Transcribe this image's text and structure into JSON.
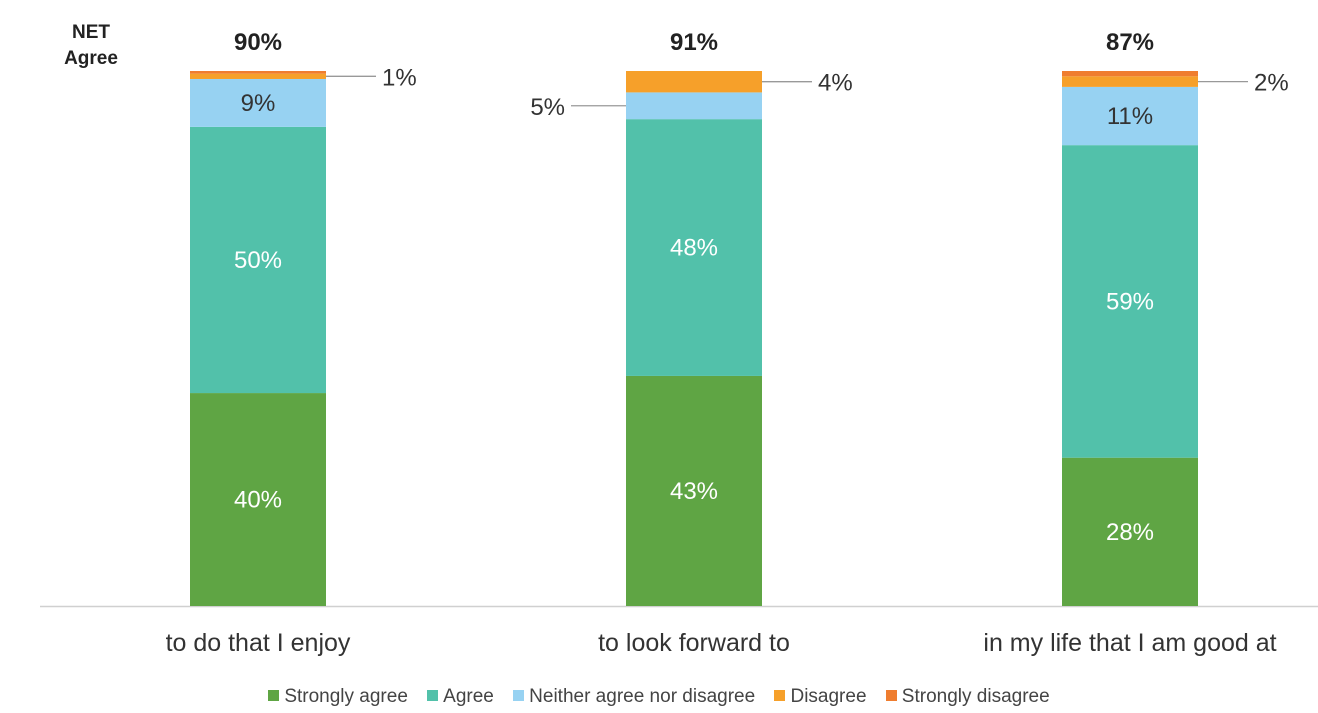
{
  "chart_data": {
    "type": "bar",
    "stacked": true,
    "net_header": [
      "NET",
      "Agree"
    ],
    "categories": [
      "to do that I enjoy",
      "to look forward to",
      "in my life that I am good at"
    ],
    "net_agree": [
      "90%",
      "91%",
      "87%"
    ],
    "series": [
      {
        "name": "Strongly agree",
        "color": "#5fa544",
        "values": [
          40,
          43,
          28
        ]
      },
      {
        "name": "Agree",
        "color": "#52c1aa",
        "values": [
          50,
          48,
          59
        ]
      },
      {
        "name": "Neither agree nor disagree",
        "color": "#97d2f2",
        "values": [
          9,
          5,
          11
        ]
      },
      {
        "name": "Disagree",
        "color": "#f6a02a",
        "values": [
          1,
          4,
          2
        ]
      },
      {
        "name": "Strongly disagree",
        "color": "#ef7d2f",
        "values": [
          0.5,
          0,
          1
        ]
      }
    ],
    "data_labels": [
      [
        "40%",
        "50%",
        "9%",
        "1%"
      ],
      [
        "43%",
        "48%",
        "5%",
        "4%"
      ],
      [
        "28%",
        "59%",
        "11%",
        "2%"
      ]
    ],
    "ylim": [
      0,
      100
    ],
    "legend_position": "bottom",
    "grid": false
  }
}
